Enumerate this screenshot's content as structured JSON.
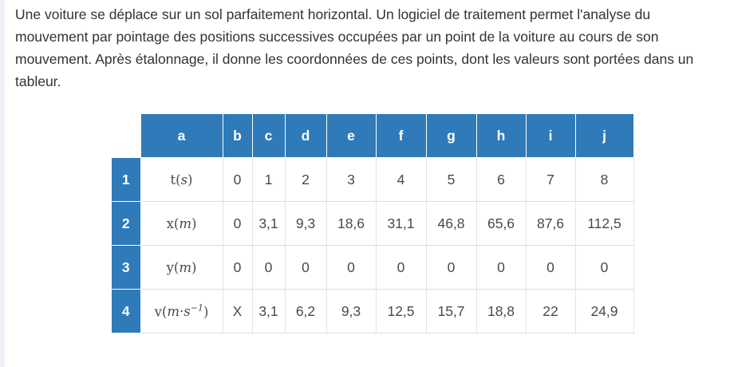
{
  "intro": "Une voiture se déplace sur un sol parfaitement horizontal. Un logiciel de traitement permet l'analyse du mouvement par pointage des positions successives occupées par un point de la voiture au cours de son mouvement. Après étalonnage, il donne les coordonnées de ces points, dont les valeurs sont portées dans un tableur.",
  "table": {
    "columns": [
      "a",
      "b",
      "c",
      "d",
      "e",
      "f",
      "g",
      "h",
      "i",
      "j"
    ],
    "rows": [
      {
        "num": "1",
        "label": "t(s)",
        "values": [
          "0",
          "1",
          "2",
          "3",
          "4",
          "5",
          "6",
          "7",
          "8"
        ]
      },
      {
        "num": "2",
        "label": "x(m)",
        "values": [
          "0",
          "3,1",
          "9,3",
          "18,6",
          "31,1",
          "46,8",
          "65,6",
          "87,6",
          "112,5"
        ]
      },
      {
        "num": "3",
        "label": "y(m)",
        "values": [
          "0",
          "0",
          "0",
          "0",
          "0",
          "0",
          "0",
          "0",
          "0"
        ]
      },
      {
        "num": "4",
        "label": "v(m·s⁻¹)",
        "values": [
          "X",
          "3,1",
          "6,2",
          "9,3",
          "12,5",
          "15,7",
          "18,8",
          "22",
          "24,9"
        ]
      }
    ]
  },
  "colors": {
    "header_bg": "#2f7ab8",
    "header_text": "#ffffff",
    "cell_text": "#4a4a4a"
  }
}
